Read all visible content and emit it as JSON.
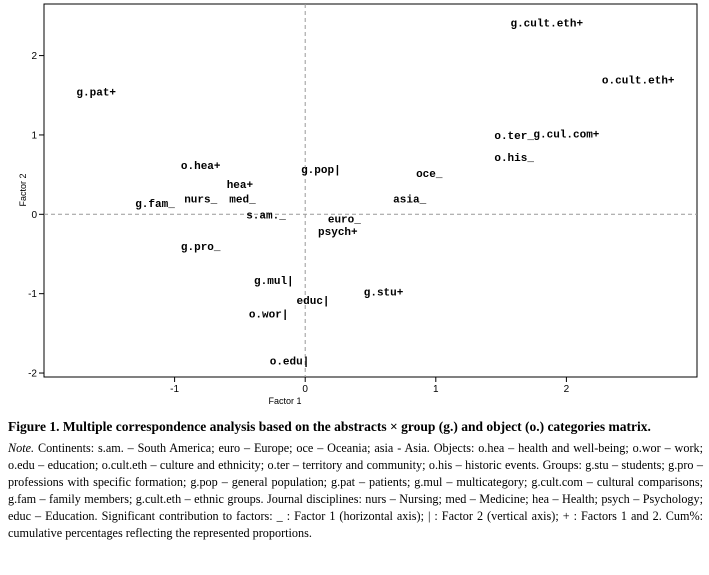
{
  "chart_data": {
    "type": "scatter",
    "xlabel": "Factor 1",
    "ylabel": "Factor 2",
    "xlim": [
      -2.0,
      3.0
    ],
    "ylim": [
      -2.05,
      2.65
    ],
    "xticks": [
      -1,
      0,
      1,
      2
    ],
    "xtick_labels": [
      "-1",
      "0",
      "1",
      "2"
    ],
    "yticks": [
      -2,
      -1,
      0,
      1,
      2
    ],
    "ytick_labels": [
      "-2",
      "-1",
      "0",
      "1",
      "2"
    ],
    "reference_lines": {
      "x": 0,
      "y": 0,
      "style": "dashed"
    },
    "points": [
      {
        "label": "g.cult.eth+",
        "x": 1.85,
        "y": 2.42
      },
      {
        "label": "o.cult.eth+",
        "x": 2.55,
        "y": 1.7
      },
      {
        "label": "g.pat+",
        "x": -1.6,
        "y": 1.55
      },
      {
        "label": "o.ter_",
        "x": 1.6,
        "y": 1.0
      },
      {
        "label": "g.cul.com+",
        "x": 2.0,
        "y": 1.02
      },
      {
        "label": "o.his_",
        "x": 1.6,
        "y": 0.72
      },
      {
        "label": "o.hea+",
        "x": -0.8,
        "y": 0.62
      },
      {
        "label": "g.pop|",
        "x": 0.12,
        "y": 0.57
      },
      {
        "label": "oce_",
        "x": 0.95,
        "y": 0.52
      },
      {
        "label": "hea+",
        "x": -0.5,
        "y": 0.38
      },
      {
        "label": "nurs_",
        "x": -0.8,
        "y": 0.2
      },
      {
        "label": "med_",
        "x": -0.48,
        "y": 0.2
      },
      {
        "label": "asia_",
        "x": 0.8,
        "y": 0.2
      },
      {
        "label": "g.fam_",
        "x": -1.15,
        "y": 0.14
      },
      {
        "label": "s.am._",
        "x": -0.3,
        "y": 0.0
      },
      {
        "label": "euro_",
        "x": 0.3,
        "y": -0.05
      },
      {
        "label": "psych+",
        "x": 0.25,
        "y": -0.21
      },
      {
        "label": "g.pro_",
        "x": -0.8,
        "y": -0.4
      },
      {
        "label": "g.mul|",
        "x": -0.24,
        "y": -0.83
      },
      {
        "label": "g.stu+",
        "x": 0.6,
        "y": -0.97
      },
      {
        "label": "educ|",
        "x": 0.06,
        "y": -1.08
      },
      {
        "label": "o.wor|",
        "x": -0.28,
        "y": -1.25
      },
      {
        "label": "o.edu|",
        "x": -0.12,
        "y": -1.84
      }
    ]
  },
  "caption": {
    "title_label": "Figure 1.",
    "title_text": " Multiple correspondence analysis based on the abstracts × group (g.) and object (o.) categories matrix.",
    "note_label": "Note.",
    "note_text": " Continents: s.am. – South America; euro – Europe; oce – Oceania; asia - Asia. Objects: o.hea – health and well-being; o.wor – work; o.edu – education; o.cult.eth – culture and ethnicity; o.ter – territory and community; o.his – historic events. Groups: g.stu – students; g.pro – professions with specific formation; g.pop – general population; g.pat – patients; g.mul – multicategory; g.cult.com – cultural comparisons; g.fam – family members; g.cult.eth – ethnic groups. Journal disciplines: nurs – Nursing; med – Medicine; hea – Health; psych – Psychology; educ – Education. Significant contribution to factors: _ : Factor 1 (horizontal axis); | : Factor 2 (vertical axis); + : Factors 1 and 2. Cum%: cumulative percentages reflecting the represented proportions."
  }
}
